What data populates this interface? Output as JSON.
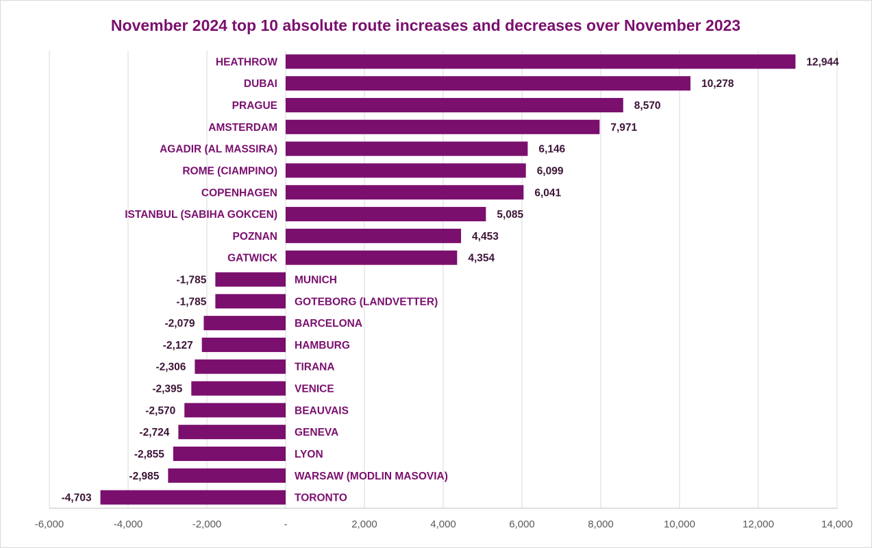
{
  "chart_data": {
    "type": "bar",
    "orientation": "horizontal",
    "title": "November 2024 top 10 absolute route increases and decreases over November 2023",
    "xlabel": "",
    "ylabel": "",
    "xlim": [
      -6000,
      14000
    ],
    "xticks": [
      -6000,
      -4000,
      -2000,
      0,
      2000,
      4000,
      6000,
      8000,
      10000,
      12000,
      14000
    ],
    "xtick_labels": [
      "-6,000",
      "-4,000",
      "-2,000",
      "-",
      "2,000",
      "4,000",
      "6,000",
      "8,000",
      "10,000",
      "12,000",
      "14,000"
    ],
    "grid": "vertical",
    "legend": "none",
    "bar_color": "#7a0f6e",
    "categories": [
      "HEATHROW",
      "DUBAI",
      "PRAGUE",
      "AMSTERDAM",
      "AGADIR (AL MASSIRA)",
      "ROME (CIAMPINO)",
      "COPENHAGEN",
      "ISTANBUL (SABIHA GOKCEN)",
      "POZNAN",
      "GATWICK",
      "MUNICH",
      "GOTEBORG (LANDVETTER)",
      "BARCELONA",
      "HAMBURG",
      "TIRANA",
      "VENICE",
      "BEAUVAIS",
      "GENEVA",
      "LYON",
      "WARSAW (MODLIN MASOVIA)",
      "TORONTO"
    ],
    "values": [
      12944,
      10278,
      8570,
      7971,
      6146,
      6099,
      6041,
      5085,
      4453,
      4354,
      -1785,
      -1785,
      -2079,
      -2127,
      -2306,
      -2395,
      -2570,
      -2724,
      -2855,
      -2985,
      -4703
    ],
    "value_labels": [
      "12,944",
      "10,278",
      "8,570",
      "7,971",
      "6,146",
      "6,099",
      "6,041",
      "5,085",
      "4,453",
      "4,354",
      "-1,785",
      "-1,785",
      "-2,079",
      "-2,127",
      "-2,306",
      "-2,395",
      "-2,570",
      "-2,724",
      "-2,855",
      "-2,985",
      "-4,703"
    ]
  }
}
